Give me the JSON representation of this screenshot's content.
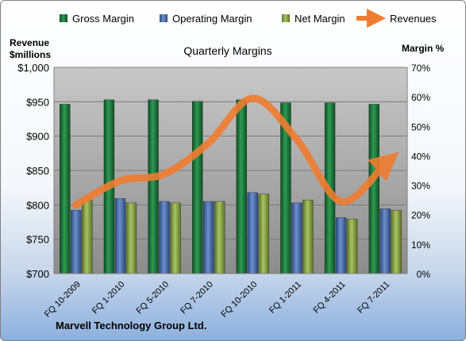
{
  "chart_data": {
    "type": "bar",
    "title": "Quarterly Margins",
    "company": "Marvell Technology Group Ltd.",
    "categories": [
      "FQ 10-2009",
      "FQ 1-2010",
      "FQ 5-2010",
      "FQ 7-2010",
      "FQ 10-2010",
      "FQ 1-2011",
      "FQ 4-2011",
      "FQ 7-2011"
    ],
    "left_axis": {
      "label_line1": "Revenue",
      "label_line2": "$millions",
      "min": 700,
      "max": 1000,
      "step": 50,
      "ticks": [
        "$700",
        "$750",
        "$800",
        "$850",
        "$900",
        "$950",
        "$1,000"
      ]
    },
    "right_axis": {
      "label": "Margin %",
      "min": 0,
      "max": 70,
      "step": 10,
      "ticks": [
        "0%",
        "10%",
        "20%",
        "30%",
        "40%",
        "50%",
        "60%",
        "70%"
      ]
    },
    "series": [
      {
        "name": "Gross Margin",
        "kind": "bar",
        "axis": "right",
        "color": "#1f7a3c",
        "values": [
          57.5,
          59.0,
          59.0,
          58.5,
          59.0,
          58.0,
          58.0,
          57.5
        ]
      },
      {
        "name": "Operating Margin",
        "kind": "bar",
        "axis": "right",
        "color": "#4a6fb0",
        "values": [
          21.5,
          25.5,
          24.5,
          24.5,
          27.5,
          24.0,
          19.0,
          22.0
        ]
      },
      {
        "name": "Net Margin",
        "kind": "bar",
        "axis": "right",
        "color": "#8aa545",
        "values": [
          25.0,
          24.0,
          24.0,
          24.5,
          27.0,
          25.0,
          18.5,
          21.5
        ]
      },
      {
        "name": "Revenues",
        "kind": "line",
        "axis": "left",
        "color": "#f07c30",
        "values": [
          800,
          835,
          845,
          890,
          955,
          895,
          805,
          860
        ]
      }
    ],
    "grid": true,
    "legend_position": "top"
  }
}
